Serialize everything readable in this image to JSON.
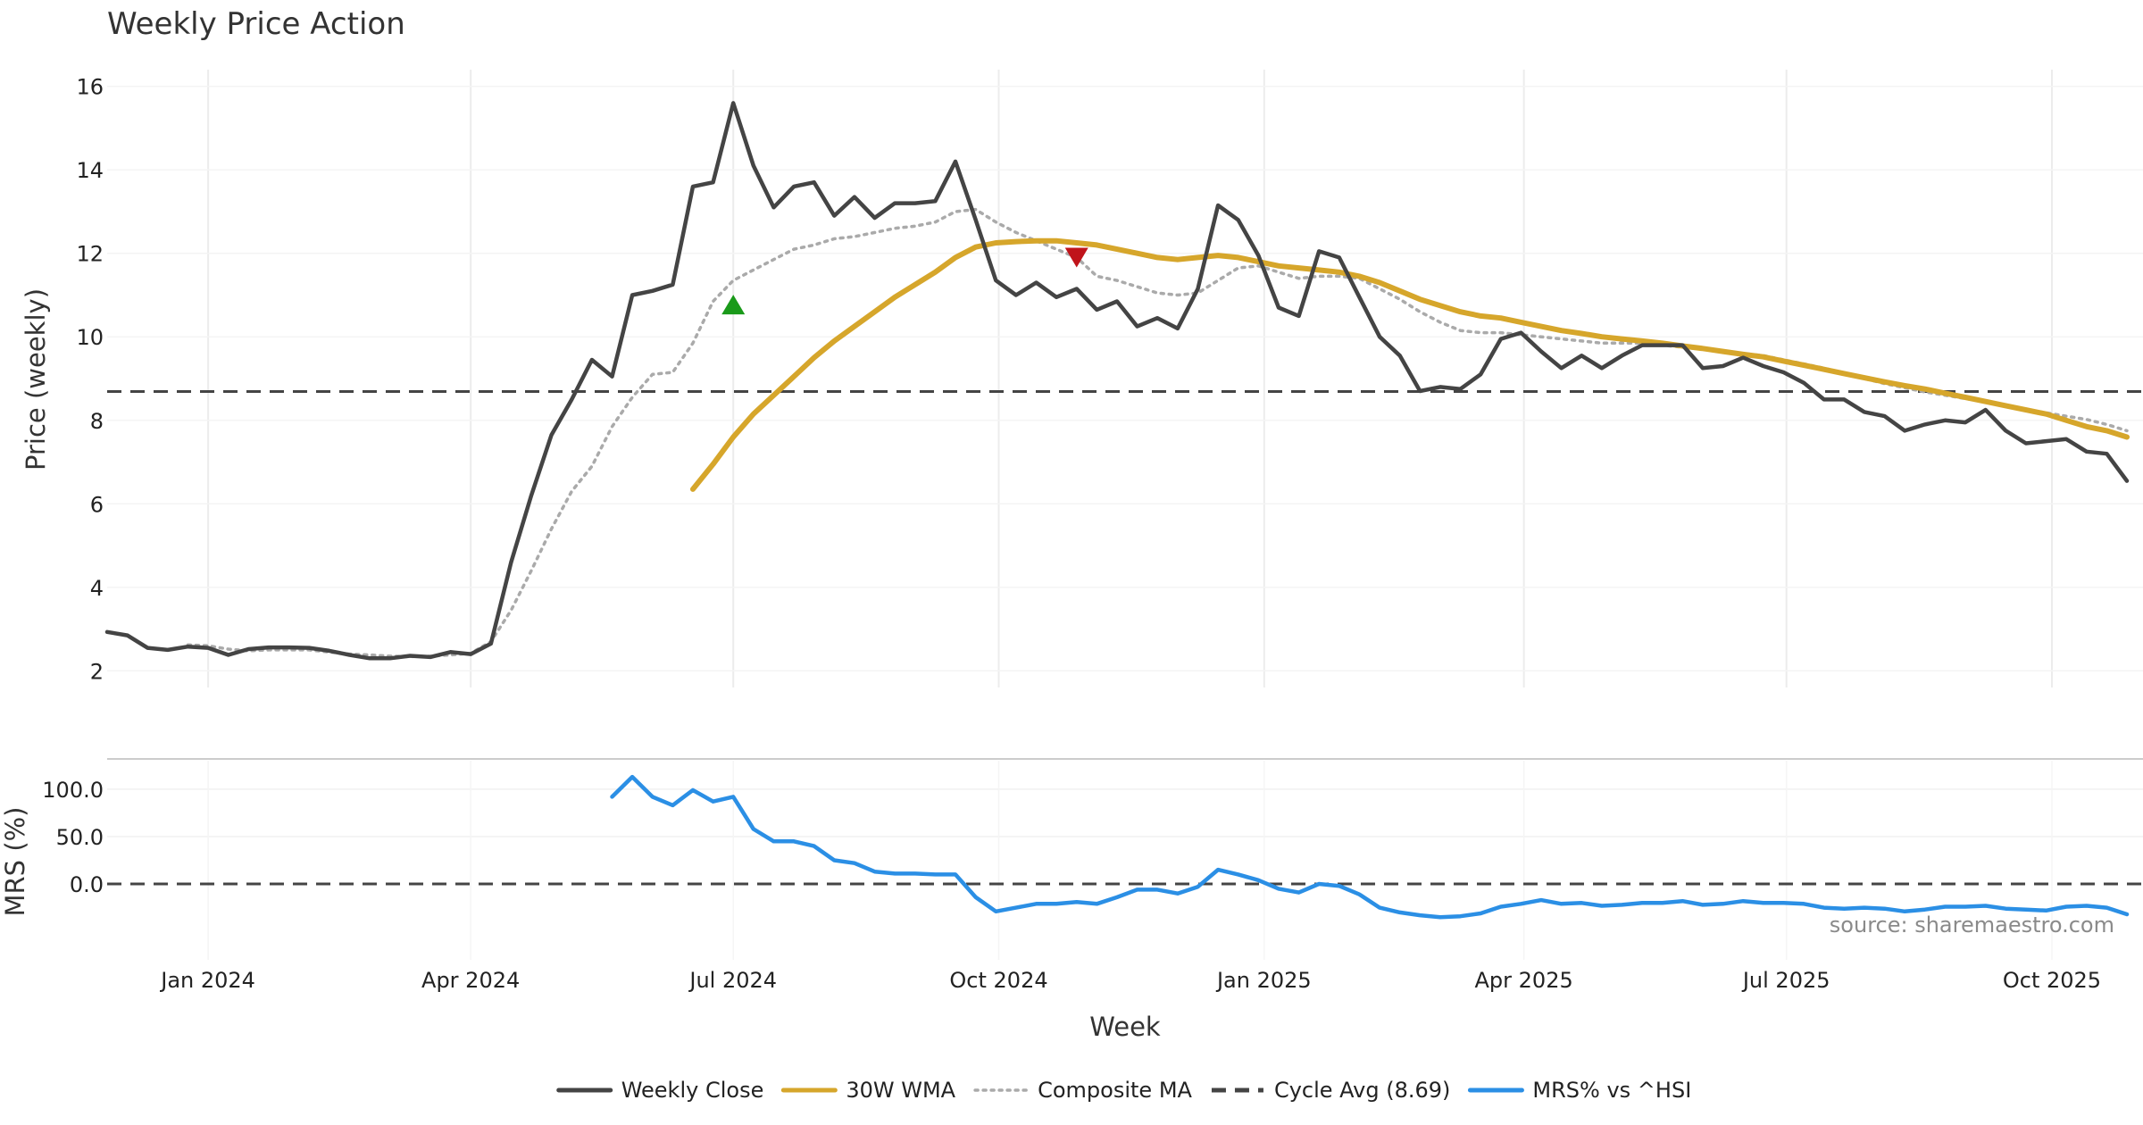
{
  "colors": {
    "close": "#444444",
    "wma": "#D6A62B",
    "composite": "#AAAAAA",
    "cycle": "#444444",
    "mrs": "#2B8FE5",
    "buy": "#1A9A1A",
    "sell": "#C0141B",
    "grid": "#ECECEC"
  },
  "chart_data": [
    {
      "type": "line",
      "title": "Weekly Price Action",
      "ylabel": "Price (weekly)",
      "xlabel": "Week",
      "ylim": [
        1.6,
        16.4
      ],
      "yticks": [
        "2",
        "4",
        "6",
        "8",
        "10",
        "12",
        "14",
        "16"
      ],
      "grid": true,
      "x_start": "2023-11-27",
      "x_step_days": 7,
      "x_tick_labels": [
        "Jan 2024",
        "Apr 2024",
        "Jul 2024",
        "Oct 2024",
        "Jan 2025",
        "Apr 2025",
        "Jul 2025",
        "Oct 2025"
      ],
      "x_tick_dates": [
        "2024-01-01",
        "2024-04-01",
        "2024-07-01",
        "2024-10-01",
        "2025-01-01",
        "2025-04-01",
        "2025-07-01",
        "2025-10-01"
      ],
      "series": [
        {
          "name": "Weekly Close",
          "style": "solid",
          "values": [
            2.93,
            2.85,
            2.55,
            2.5,
            2.58,
            2.55,
            2.38,
            2.52,
            2.56,
            2.56,
            2.55,
            2.48,
            2.38,
            2.3,
            2.3,
            2.36,
            2.33,
            2.45,
            2.4,
            2.65,
            4.6,
            6.2,
            7.65,
            8.5,
            9.45,
            9.05,
            11.0,
            11.1,
            11.25,
            13.6,
            13.7,
            15.6,
            14.1,
            13.1,
            13.6,
            13.7,
            12.9,
            13.35,
            12.85,
            13.2,
            13.2,
            13.25,
            14.2,
            12.8,
            11.35,
            11.0,
            11.3,
            10.95,
            11.15,
            10.65,
            10.85,
            10.25,
            10.45,
            10.2,
            11.15,
            13.15,
            12.8,
            11.95,
            10.7,
            10.5,
            12.05,
            11.9,
            10.95,
            10.0,
            9.55,
            8.7,
            8.8,
            8.75,
            9.1,
            9.95,
            10.1,
            9.65,
            9.25,
            9.55,
            9.25,
            9.55,
            9.8,
            9.8,
            9.8,
            9.25,
            9.3,
            9.5,
            9.3,
            9.15,
            8.9,
            8.5,
            8.5,
            8.2,
            8.1,
            7.75,
            7.9,
            8.0,
            7.95,
            8.25,
            7.75,
            7.45,
            7.5,
            7.55,
            7.25,
            7.2,
            6.55
          ]
        },
        {
          "name": "30W WMA",
          "style": "solid",
          "start_index": 29,
          "values": [
            6.35,
            6.95,
            7.6,
            8.15,
            8.6,
            9.05,
            9.5,
            9.9,
            10.25,
            10.6,
            10.95,
            11.25,
            11.55,
            11.9,
            12.15,
            12.25,
            12.28,
            12.3,
            12.3,
            12.25,
            12.2,
            12.1,
            12.0,
            11.9,
            11.85,
            11.9,
            11.95,
            11.9,
            11.8,
            11.7,
            11.65,
            11.6,
            11.55,
            11.45,
            11.3,
            11.1,
            10.9,
            10.75,
            10.6,
            10.5,
            10.45,
            10.35,
            10.25,
            10.15,
            10.08,
            10.0,
            9.95,
            9.9,
            9.85,
            9.78,
            9.72,
            9.65,
            9.58,
            9.52,
            9.42,
            9.32,
            9.22,
            9.12,
            9.02,
            8.92,
            8.83,
            8.75,
            8.65,
            8.55,
            8.45,
            8.35,
            8.25,
            8.15,
            8.0,
            7.85,
            7.75,
            7.6
          ]
        },
        {
          "name": "Composite MA",
          "style": "dotted",
          "start_index": 4,
          "values": [
            2.62,
            2.6,
            2.52,
            2.48,
            2.5,
            2.5,
            2.5,
            2.45,
            2.4,
            2.38,
            2.35,
            2.34,
            2.35,
            2.38,
            2.42,
            2.7,
            3.45,
            4.4,
            5.4,
            6.3,
            6.9,
            7.85,
            8.55,
            9.1,
            9.15,
            9.85,
            10.85,
            11.35,
            11.6,
            11.85,
            12.1,
            12.2,
            12.35,
            12.4,
            12.5,
            12.6,
            12.65,
            12.75,
            13.0,
            13.05,
            12.75,
            12.5,
            12.3,
            12.1,
            11.9,
            11.45,
            11.35,
            11.2,
            11.05,
            11.0,
            11.05,
            11.35,
            11.65,
            11.7,
            11.55,
            11.4,
            11.45,
            11.45,
            11.4,
            11.15,
            10.9,
            10.6,
            10.35,
            10.15,
            10.1,
            10.1,
            10.05,
            10.0,
            9.95,
            9.9,
            9.85,
            9.85,
            9.85,
            9.8,
            9.75,
            9.7,
            9.65,
            9.6,
            9.55,
            9.45,
            9.35,
            9.25,
            9.12,
            9.0,
            8.88,
            8.78,
            8.68,
            8.6,
            8.52,
            8.45,
            8.35,
            8.25,
            8.18,
            8.1,
            8.02,
            7.9,
            7.75
          ]
        },
        {
          "name": "Cycle Avg (8.69)",
          "style": "dashed",
          "constant": 8.69
        }
      ],
      "markers": [
        {
          "kind": "buy",
          "index": 31,
          "value": 10.75
        },
        {
          "kind": "sell",
          "index": 48,
          "value": 11.92
        }
      ]
    },
    {
      "type": "line",
      "ylabel": "MRS (%)",
      "ylim": [
        -80,
        130
      ],
      "yticks": [
        "100.0",
        "50.0",
        "0.0"
      ],
      "reference_line": 0,
      "series": [
        {
          "name": "MRS% vs ^HSI",
          "style": "solid",
          "start_index": 25,
          "values": [
            92,
            113,
            92,
            83,
            99,
            87,
            92,
            58,
            45,
            45,
            40,
            25,
            22,
            13,
            11,
            11,
            10,
            10,
            -14,
            -29,
            -25,
            -21,
            -21,
            -19,
            -21,
            -14,
            -6,
            -6,
            -10,
            -3,
            15,
            10,
            4,
            -5,
            -9,
            0,
            -2,
            -11,
            -25,
            -30,
            -33,
            -35,
            -34,
            -31,
            -24,
            -21,
            -17,
            -21,
            -20,
            -23,
            -22,
            -20,
            -20,
            -18,
            -22,
            -21,
            -18,
            -20,
            -20,
            -21,
            -25,
            -26,
            -25,
            -26,
            -29,
            -27,
            -24,
            -24,
            -23,
            -26,
            -27,
            -28,
            -24,
            -23,
            -25,
            -32
          ]
        }
      ]
    }
  ],
  "source_text": "source: sharemaestro.com",
  "legend": [
    {
      "label": "Weekly Close",
      "style": "solid",
      "color_key": "close"
    },
    {
      "label": "30W WMA",
      "style": "solid",
      "color_key": "wma"
    },
    {
      "label": "Composite MA",
      "style": "dotted",
      "color_key": "composite"
    },
    {
      "label": "Cycle Avg (8.69)",
      "style": "dashed",
      "color_key": "cycle"
    },
    {
      "label": "MRS% vs ^HSI",
      "style": "solid",
      "color_key": "mrs"
    }
  ]
}
